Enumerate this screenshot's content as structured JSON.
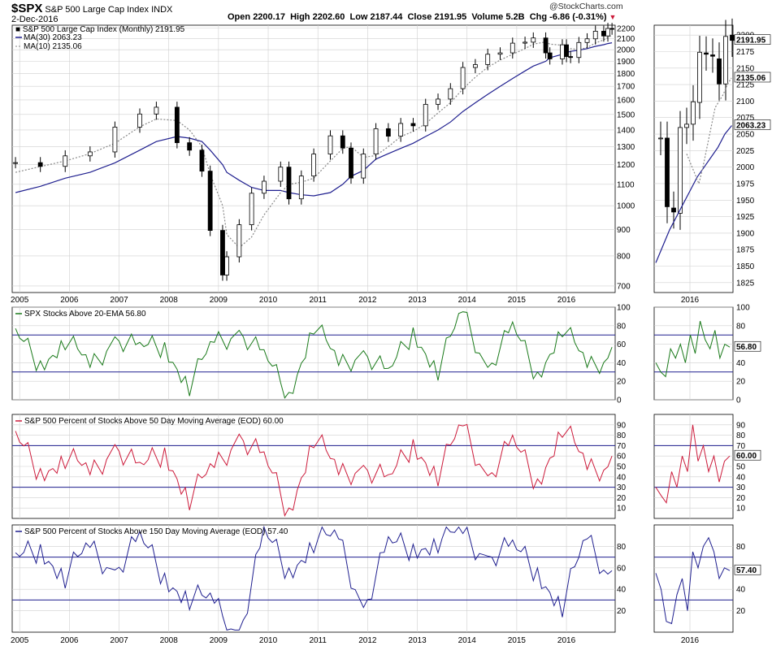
{
  "header": {
    "symbol": "$SPX",
    "name": "S&P 500 Large Cap Index",
    "exchange": "INDX",
    "date": "2-Dec-2016",
    "open_label": "Open",
    "open": "2200.17",
    "high_label": "High",
    "high": "2202.60",
    "low_label": "Low",
    "low": "2187.44",
    "close_label": "Close",
    "close": "2191.95",
    "volume_label": "Volume",
    "volume": "5.2B",
    "chg_label": "Chg",
    "chg": "-6.86 (-0.31%)",
    "watermark": "@StockCharts.com"
  },
  "colors": {
    "grid": "#cfcfcf",
    "ma30": "#1f1f8f",
    "ma10": "#888888",
    "ema20": "#1a7a1a",
    "pct50": "#cc1a3a",
    "pct150": "#1f1f8f",
    "label_bg": "#ffffff"
  },
  "chart_data": [
    {
      "type": "candlestick",
      "panel": "price-main",
      "title": "S&P 500 Large Cap Index (Monthly) 2191.95",
      "overlays": [
        {
          "name": "MA(30)",
          "value": "2063.23"
        },
        {
          "name": "MA(10)",
          "value": "2135.06"
        }
      ],
      "x_ticks": [
        "2005",
        "2006",
        "2007",
        "2008",
        "2009",
        "2010",
        "2011",
        "2012",
        "2013",
        "2014",
        "2015",
        "2016"
      ],
      "y_ticks": [
        "2200",
        "2100",
        "2000",
        "1900",
        "1800",
        "1700",
        "1600",
        "1500",
        "1400",
        "1300",
        "1200",
        "1100",
        "1000",
        "900",
        "800",
        "700"
      ],
      "ylim": [
        680,
        2230
      ],
      "y_scale": "log",
      "x": [
        "2004-12",
        "2005-06",
        "2005-12",
        "2006-06",
        "2006-12",
        "2007-06",
        "2007-10",
        "2008-03",
        "2008-06",
        "2008-09",
        "2008-11",
        "2009-02",
        "2009-03",
        "2009-06",
        "2009-09",
        "2009-12",
        "2010-04",
        "2010-06",
        "2010-09",
        "2010-12",
        "2011-04",
        "2011-07",
        "2011-09",
        "2011-12",
        "2012-03",
        "2012-06",
        "2012-09",
        "2012-12",
        "2013-03",
        "2013-06",
        "2013-09",
        "2013-12",
        "2014-03",
        "2014-06",
        "2014-09",
        "2014-12",
        "2015-03",
        "2015-05",
        "2015-08",
        "2015-09",
        "2015-12",
        "2016-01",
        "2016-02",
        "2016-04",
        "2016-06",
        "2016-08",
        "2016-10",
        "2016-11",
        "2016-12"
      ],
      "close": [
        1211,
        1191,
        1248,
        1270,
        1418,
        1503,
        1549,
        1323,
        1280,
        1166,
        896,
        735,
        797,
        919,
        1057,
        1115,
        1187,
        1031,
        1141,
        1258,
        1364,
        1292,
        1131,
        1258,
        1408,
        1362,
        1441,
        1426,
        1569,
        1606,
        1682,
        1848,
        1872,
        1960,
        1972,
        2059,
        2068,
        2107,
        1972,
        1920,
        2044,
        1940,
        1932,
        2065,
        2099,
        2171,
        2126,
        2198,
        2192
      ],
      "ma30": [
        1060,
        1090,
        1130,
        1160,
        1210,
        1280,
        1330,
        1360,
        1350,
        1330,
        1280,
        1200,
        1160,
        1120,
        1085,
        1070,
        1070,
        1060,
        1050,
        1045,
        1060,
        1100,
        1140,
        1170,
        1230,
        1260,
        1290,
        1320,
        1360,
        1400,
        1450,
        1520,
        1580,
        1640,
        1700,
        1760,
        1820,
        1860,
        1900,
        1930,
        1960,
        1975,
        1985,
        1995,
        2010,
        2030,
        2045,
        2055,
        2063
      ],
      "ma10": [
        1160,
        1190,
        1220,
        1260,
        1320,
        1420,
        1470,
        1460,
        1400,
        1300,
        1150,
        1000,
        880,
        830,
        870,
        960,
        1060,
        1100,
        1110,
        1130,
        1220,
        1290,
        1300,
        1240,
        1250,
        1300,
        1360,
        1390,
        1440,
        1510,
        1580,
        1680,
        1770,
        1850,
        1910,
        1960,
        2010,
        2050,
        2070,
        2050,
        2040,
        2020,
        2010,
        2000,
        2020,
        2060,
        2090,
        2110,
        2135
      ]
    },
    {
      "type": "candlestick",
      "panel": "price-inset",
      "x_ticks": [
        "2016"
      ],
      "y_ticks": [
        "2200",
        "2175",
        "2150",
        "2125",
        "2100",
        "2075",
        "2050",
        "2025",
        "2000",
        "1975",
        "1950",
        "1925",
        "1900",
        "1875",
        "1850",
        "1825"
      ],
      "ylim": [
        1810,
        2215
      ],
      "overlay_labels": [
        "2191.95",
        "2135.06",
        "2063.23"
      ]
    },
    {
      "type": "line",
      "panel": "ema20",
      "title": "SPX Stocks Above 20-EMA 56.80",
      "last_value": "56.80",
      "y_ticks": [
        "100",
        "80",
        "60",
        "40",
        "20",
        "0"
      ],
      "ylim": [
        0,
        100
      ],
      "reference_lines": [
        70,
        30
      ],
      "x": [
        "2004-12",
        "2005-06",
        "2005-12",
        "2006-06",
        "2006-12",
        "2007-06",
        "2007-12",
        "2008-06",
        "2008-12",
        "2009-06",
        "2009-12",
        "2010-06",
        "2010-12",
        "2011-06",
        "2011-12",
        "2012-06",
        "2012-12",
        "2013-06",
        "2013-12",
        "2014-06",
        "2014-12",
        "2015-06",
        "2015-12",
        "2016-06",
        "2016-12"
      ],
      "values": [
        63,
        42,
        68,
        28,
        75,
        48,
        62,
        18,
        55,
        82,
        40,
        8,
        85,
        30,
        60,
        20,
        78,
        35,
        88,
        42,
        70,
        30,
        82,
        28,
        56.8
      ]
    },
    {
      "type": "line",
      "panel": "pct50",
      "title": "S&P 500 Percent of Stocks Above 50 Day Moving Average (EOD) 60.00",
      "last_value": "60.00",
      "y_ticks": [
        "90",
        "80",
        "70",
        "60",
        "50",
        "40",
        "30",
        "20",
        "10"
      ],
      "ylim": [
        0,
        100
      ],
      "reference_lines": [
        70,
        30
      ],
      "x": [
        "2004-12",
        "2005-06",
        "2005-12",
        "2006-06",
        "2006-12",
        "2007-06",
        "2007-12",
        "2008-06",
        "2008-12",
        "2009-06",
        "2009-12",
        "2010-06",
        "2010-12",
        "2011-06",
        "2011-12",
        "2012-06",
        "2012-12",
        "2013-06",
        "2013-12",
        "2014-06",
        "2014-12",
        "2015-06",
        "2015-12",
        "2016-06",
        "2016-12"
      ],
      "values": [
        70,
        48,
        62,
        35,
        78,
        40,
        68,
        22,
        42,
        88,
        50,
        10,
        82,
        35,
        58,
        28,
        76,
        45,
        82,
        48,
        66,
        38,
        92,
        40,
        60.0
      ]
    },
    {
      "type": "line",
      "panel": "pct150",
      "title": "S&P 500 Percent of Stocks Above 150 Day Moving Average (EOD) 57.40",
      "last_value": "57.40",
      "y_ticks": [
        "80",
        "60",
        "40",
        "20"
      ],
      "ylim": [
        0,
        100
      ],
      "reference_lines": [
        70,
        30
      ],
      "x": [
        "2004-12",
        "2005-06",
        "2005-12",
        "2006-06",
        "2006-12",
        "2007-06",
        "2007-12",
        "2008-06",
        "2008-12",
        "2009-06",
        "2009-12",
        "2010-06",
        "2010-12",
        "2011-06",
        "2011-12",
        "2012-06",
        "2012-12",
        "2013-06",
        "2013-12",
        "2014-06",
        "2014-12",
        "2015-06",
        "2015-12",
        "2016-06",
        "2016-12"
      ],
      "values": [
        60,
        82,
        55,
        72,
        65,
        80,
        55,
        35,
        20,
        5,
        85,
        60,
        88,
        80,
        30,
        75,
        82,
        88,
        85,
        78,
        72,
        60,
        28,
        80,
        57.4
      ]
    }
  ]
}
